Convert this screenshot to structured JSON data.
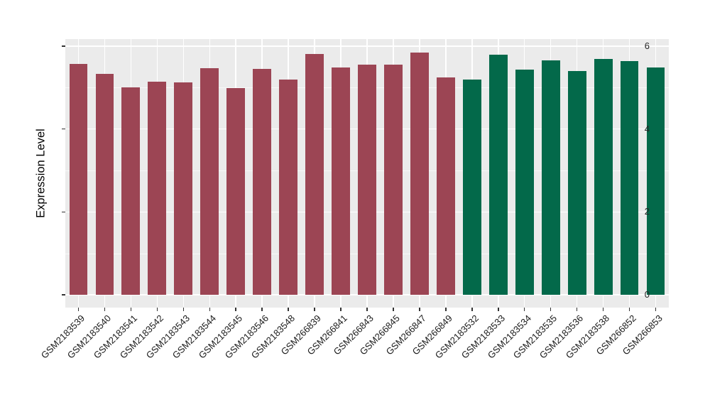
{
  "figure": {
    "background": "#FFFFFF",
    "panel_background": "#EBEBEB",
    "grid_color": "#FFFFFF",
    "tick_color": "#333333",
    "text_color": "#1A1A1A"
  },
  "chart_data": {
    "type": "bar",
    "title": "",
    "xlabel": "",
    "ylabel": "Expression Level",
    "ylim": [
      0,
      6.14
    ],
    "yticks": [
      0,
      2,
      4,
      6
    ],
    "yticks_minor": [
      1,
      3,
      5
    ],
    "grid": true,
    "legend": false,
    "categories": [
      "GSM2183539",
      "GSM2183540",
      "GSM2183541",
      "GSM2183542",
      "GSM2183543",
      "GSM2183544",
      "GSM2183545",
      "GSM2183546",
      "GSM2183548",
      "GSM266839",
      "GSM266841",
      "GSM266843",
      "GSM266845",
      "GSM266847",
      "GSM266849",
      "GSM2183532",
      "GSM2183533",
      "GSM2183534",
      "GSM2183535",
      "GSM2183536",
      "GSM2183538",
      "GSM266852",
      "GSM266853"
    ],
    "values": [
      5.57,
      5.34,
      5.01,
      5.15,
      5.12,
      5.47,
      4.99,
      5.45,
      5.2,
      5.82,
      5.48,
      5.56,
      5.56,
      5.84,
      5.25,
      5.19,
      5.79,
      5.43,
      5.66,
      5.4,
      5.69,
      5.64,
      5.49
    ],
    "groups": [
      "maroon",
      "maroon",
      "maroon",
      "maroon",
      "maroon",
      "maroon",
      "maroon",
      "maroon",
      "maroon",
      "maroon",
      "maroon",
      "maroon",
      "maroon",
      "maroon",
      "maroon",
      "green",
      "green",
      "green",
      "green",
      "green",
      "green",
      "green",
      "green"
    ],
    "group_colors": {
      "maroon": "#9C4554",
      "green": "#03694A"
    }
  }
}
